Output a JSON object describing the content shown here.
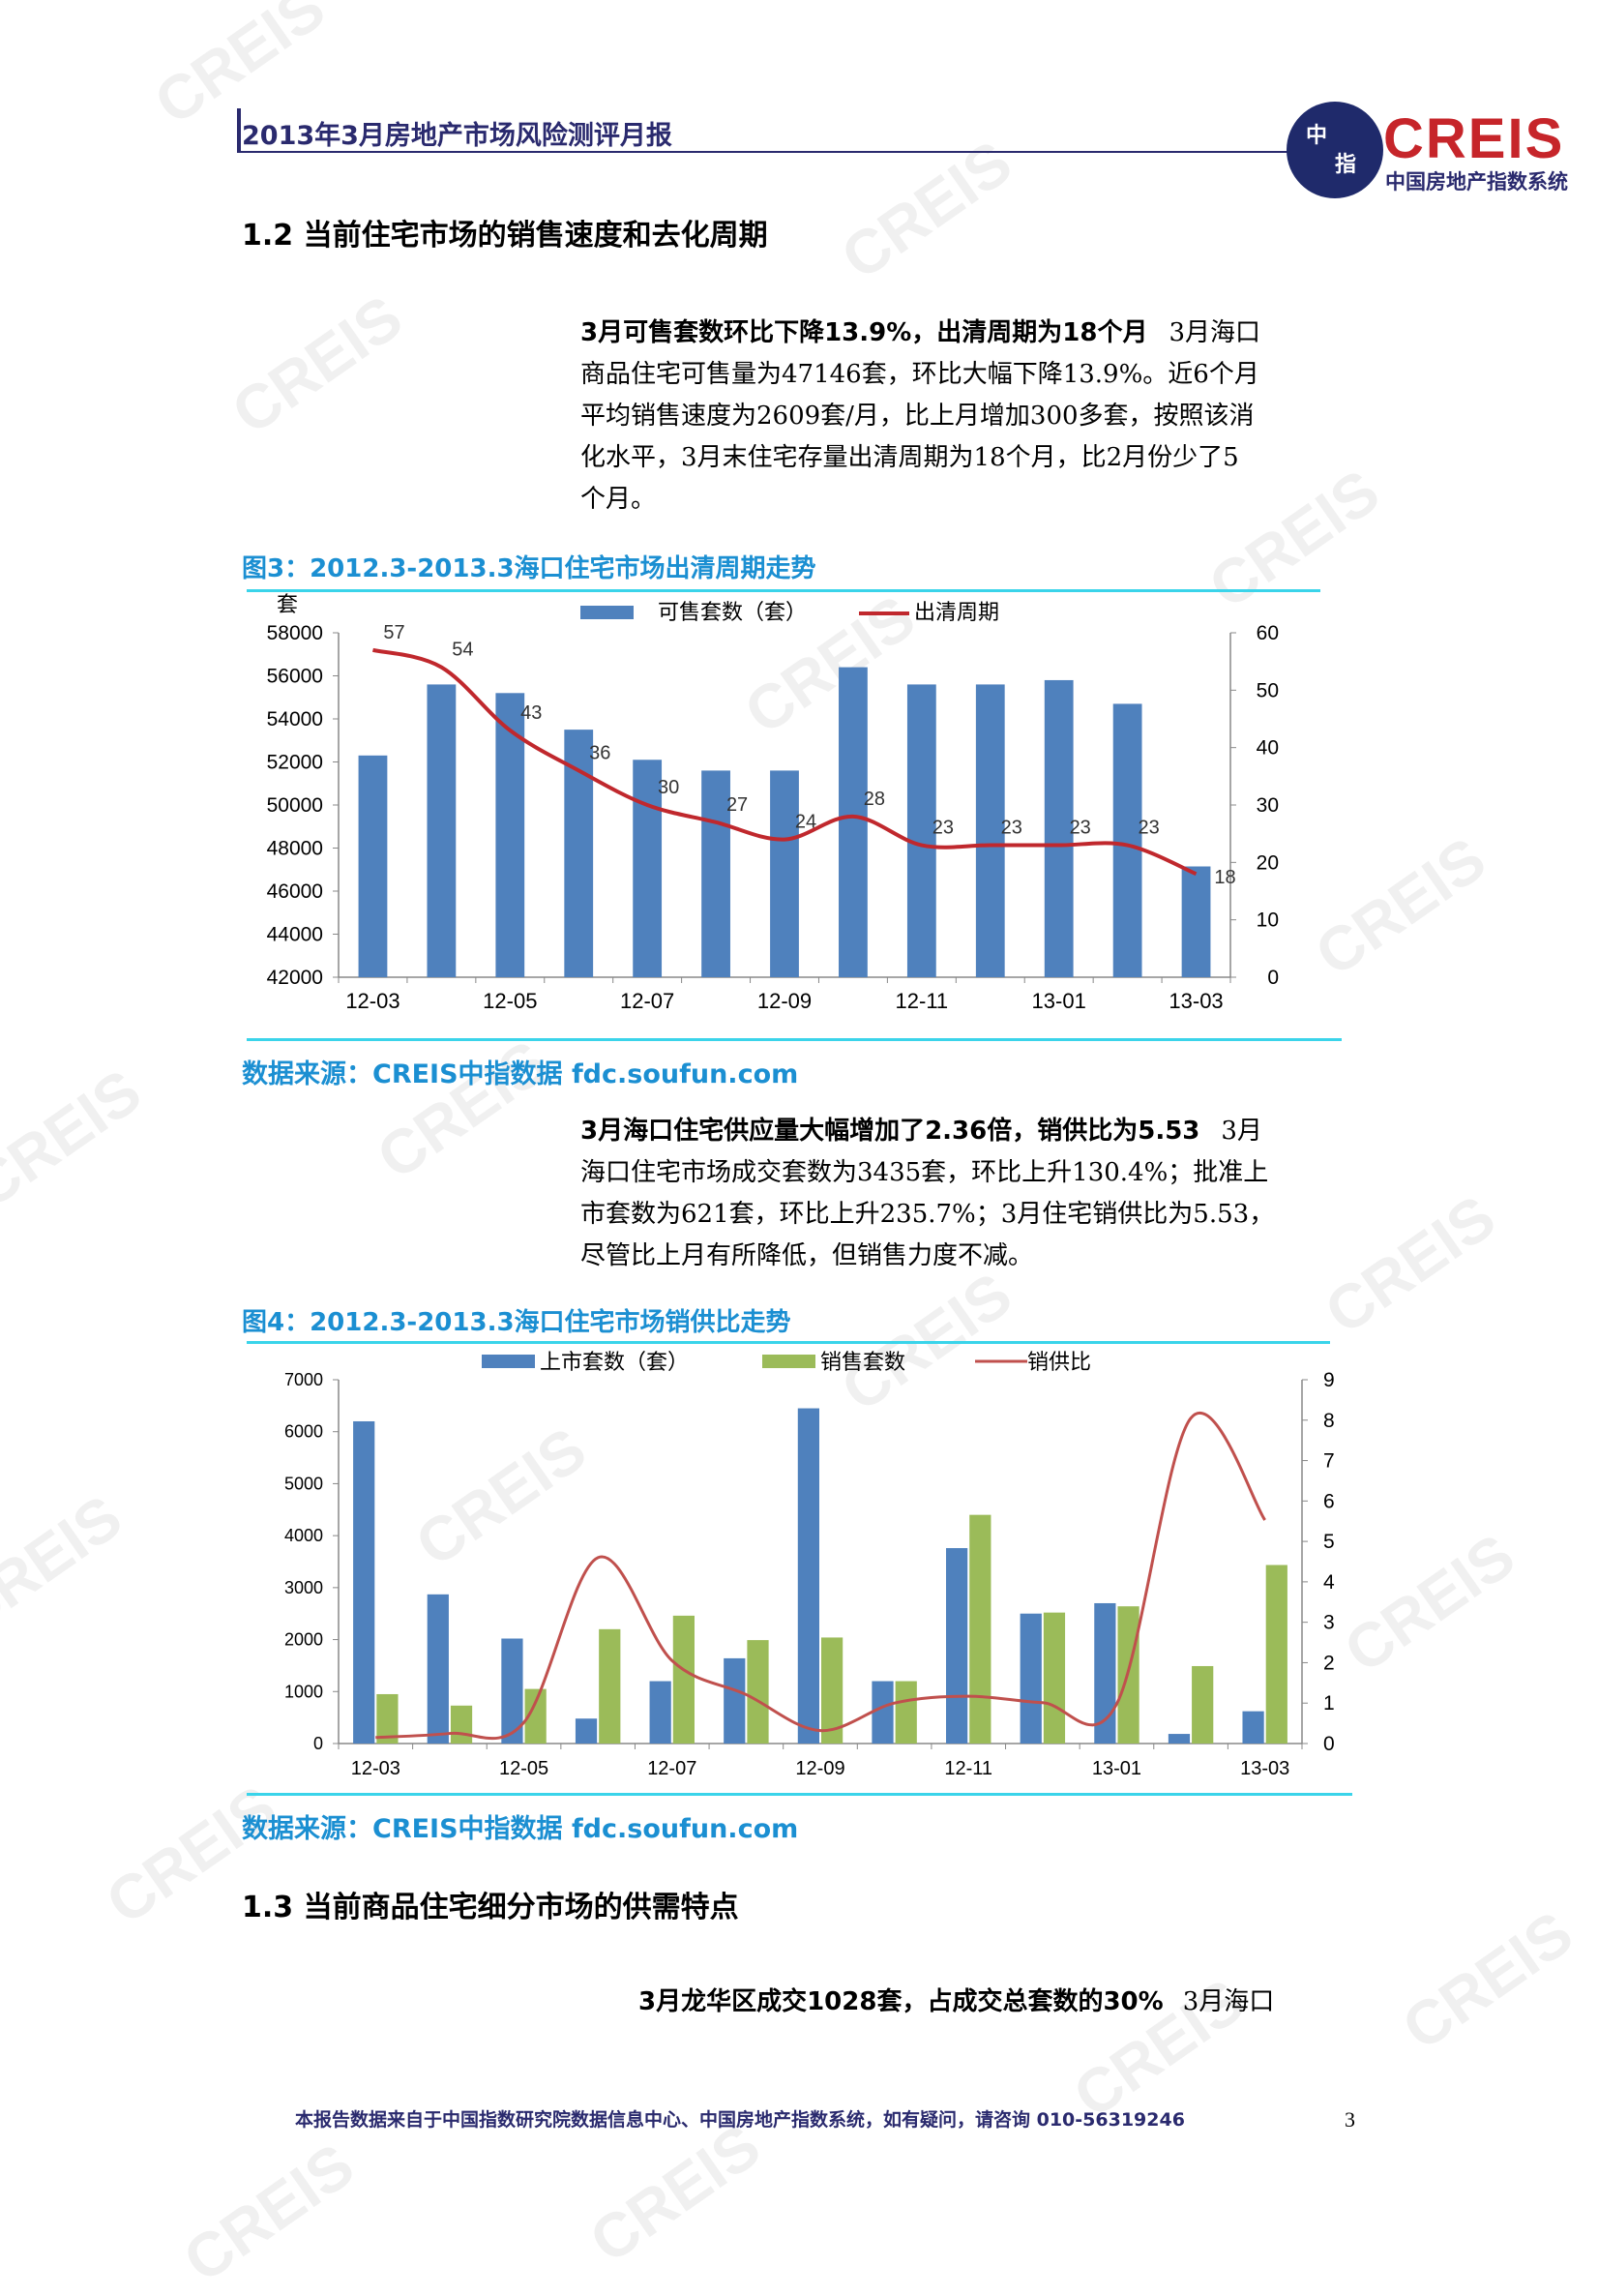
{
  "header": {
    "title": "2013年3月房地产市场风险测评月报",
    "logo_text": "CREIS",
    "logo_sub": "中国房地产指数系统",
    "logo_globe_1": "中",
    "logo_globe_2": "指"
  },
  "watermark": "CREIS",
  "sections": {
    "s12_title": "1.2 当前住宅市场的销售速度和去化周期",
    "s13_title": "1.3 当前商品住宅细分市场的供需特点"
  },
  "paragraphs": {
    "p1_lead": "3月可售套数环比下降13.9%，出清周期为18个月",
    "p1_lines": [
      "3月海口",
      "商品住宅可售量为47146套，环比大幅下降13.9%。近6个月",
      "平均销售速度为2609套/月，比上月增加300多套，按照该消",
      "化水平，3月末住宅存量出清周期为18个月，比2月份少了5",
      "个月。"
    ],
    "p2_lead": "3月海口住宅供应量大幅增加了2.36倍，销供比为5.53",
    "p2_lines": [
      "3月",
      "海口住宅市场成交套数为3435套，环比上升130.4%；批准上",
      "市套数为621套，环比上升235.7%；3月住宅销供比为5.53，",
      "尽管比上月有所降低，但销售力度不减。"
    ],
    "p3_lead": "3月龙华区成交1028套，占成交总套数的30%",
    "p3_tail": "3月海口"
  },
  "figures": {
    "fig3_caption": "图3：2012.3-2013.3海口住宅市场出清周期走势",
    "fig4_caption": "图4：2012.3-2013.3海口住宅市场销供比走势",
    "source": "数据来源：CREIS中指数据 fdc.soufun.com"
  },
  "chart_data": [
    {
      "type": "bar",
      "y_unit_label": "套",
      "categories": [
        "12-03",
        "12-04",
        "12-05",
        "12-06",
        "12-07",
        "12-08",
        "12-09",
        "12-10",
        "12-11",
        "12-12",
        "13-01",
        "13-02",
        "13-03"
      ],
      "x_tick_labels": [
        "12-03",
        "12-05",
        "12-07",
        "12-09",
        "12-11",
        "13-01",
        "13-03"
      ],
      "series": [
        {
          "name": "可售套数（套）",
          "type": "bar",
          "axis": "left",
          "color": "#4f81bd",
          "values": [
            52300,
            55600,
            55200,
            53500,
            52100,
            51600,
            51600,
            56400,
            55600,
            55600,
            55800,
            54700,
            47146
          ]
        },
        {
          "name": "出清周期",
          "type": "line",
          "axis": "right",
          "color": "#c0282d",
          "values": [
            57,
            54,
            43,
            36,
            30,
            27,
            24,
            28,
            23,
            23,
            23,
            23,
            18
          ]
        }
      ],
      "ylim": [
        42000,
        58000
      ],
      "y_ticks": [
        42000,
        44000,
        46000,
        48000,
        50000,
        52000,
        54000,
        56000,
        58000
      ],
      "y2lim": [
        0,
        60
      ],
      "y2_ticks": [
        0,
        10,
        20,
        30,
        40,
        50,
        60
      ],
      "legend": "top-center"
    },
    {
      "type": "bar",
      "categories": [
        "12-03",
        "12-04",
        "12-05",
        "12-06",
        "12-07",
        "12-08",
        "12-09",
        "12-10",
        "12-11",
        "12-12",
        "13-01",
        "13-02",
        "13-03"
      ],
      "x_tick_labels": [
        "12-03",
        "12-05",
        "12-07",
        "12-09",
        "12-11",
        "13-01",
        "13-03"
      ],
      "series": [
        {
          "name": "上市套数（套）",
          "type": "bar",
          "axis": "left",
          "color": "#4f81bd",
          "values": [
            6200,
            2870,
            2020,
            480,
            1200,
            1640,
            6450,
            1200,
            3760,
            2500,
            2700,
            185,
            621
          ]
        },
        {
          "name": "销售套数",
          "type": "bar",
          "axis": "left",
          "color": "#9bbb59",
          "values": [
            950,
            730,
            1050,
            2200,
            2460,
            1990,
            2040,
            1200,
            4400,
            2520,
            2640,
            1490,
            3435
          ]
        },
        {
          "name": "销供比",
          "type": "line",
          "axis": "right",
          "color": "#c0504d",
          "values": [
            0.15,
            0.25,
            0.52,
            4.6,
            2.05,
            1.21,
            0.32,
            1.0,
            1.17,
            1.01,
            0.98,
            8.05,
            5.53
          ]
        }
      ],
      "ylim": [
        0,
        7000
      ],
      "y_ticks": [
        0,
        1000,
        2000,
        3000,
        4000,
        5000,
        6000,
        7000
      ],
      "y2lim": [
        0,
        9
      ],
      "y2_ticks": [
        0,
        1,
        2,
        3,
        4,
        5,
        6,
        7,
        8,
        9
      ],
      "legend": "top-center"
    }
  ],
  "footer": {
    "text": "本报告数据来自于中国指数研究院数据信息中心、中国房地产指数系统，如有疑问，请咨询 010-56319246",
    "page_number": "3"
  }
}
